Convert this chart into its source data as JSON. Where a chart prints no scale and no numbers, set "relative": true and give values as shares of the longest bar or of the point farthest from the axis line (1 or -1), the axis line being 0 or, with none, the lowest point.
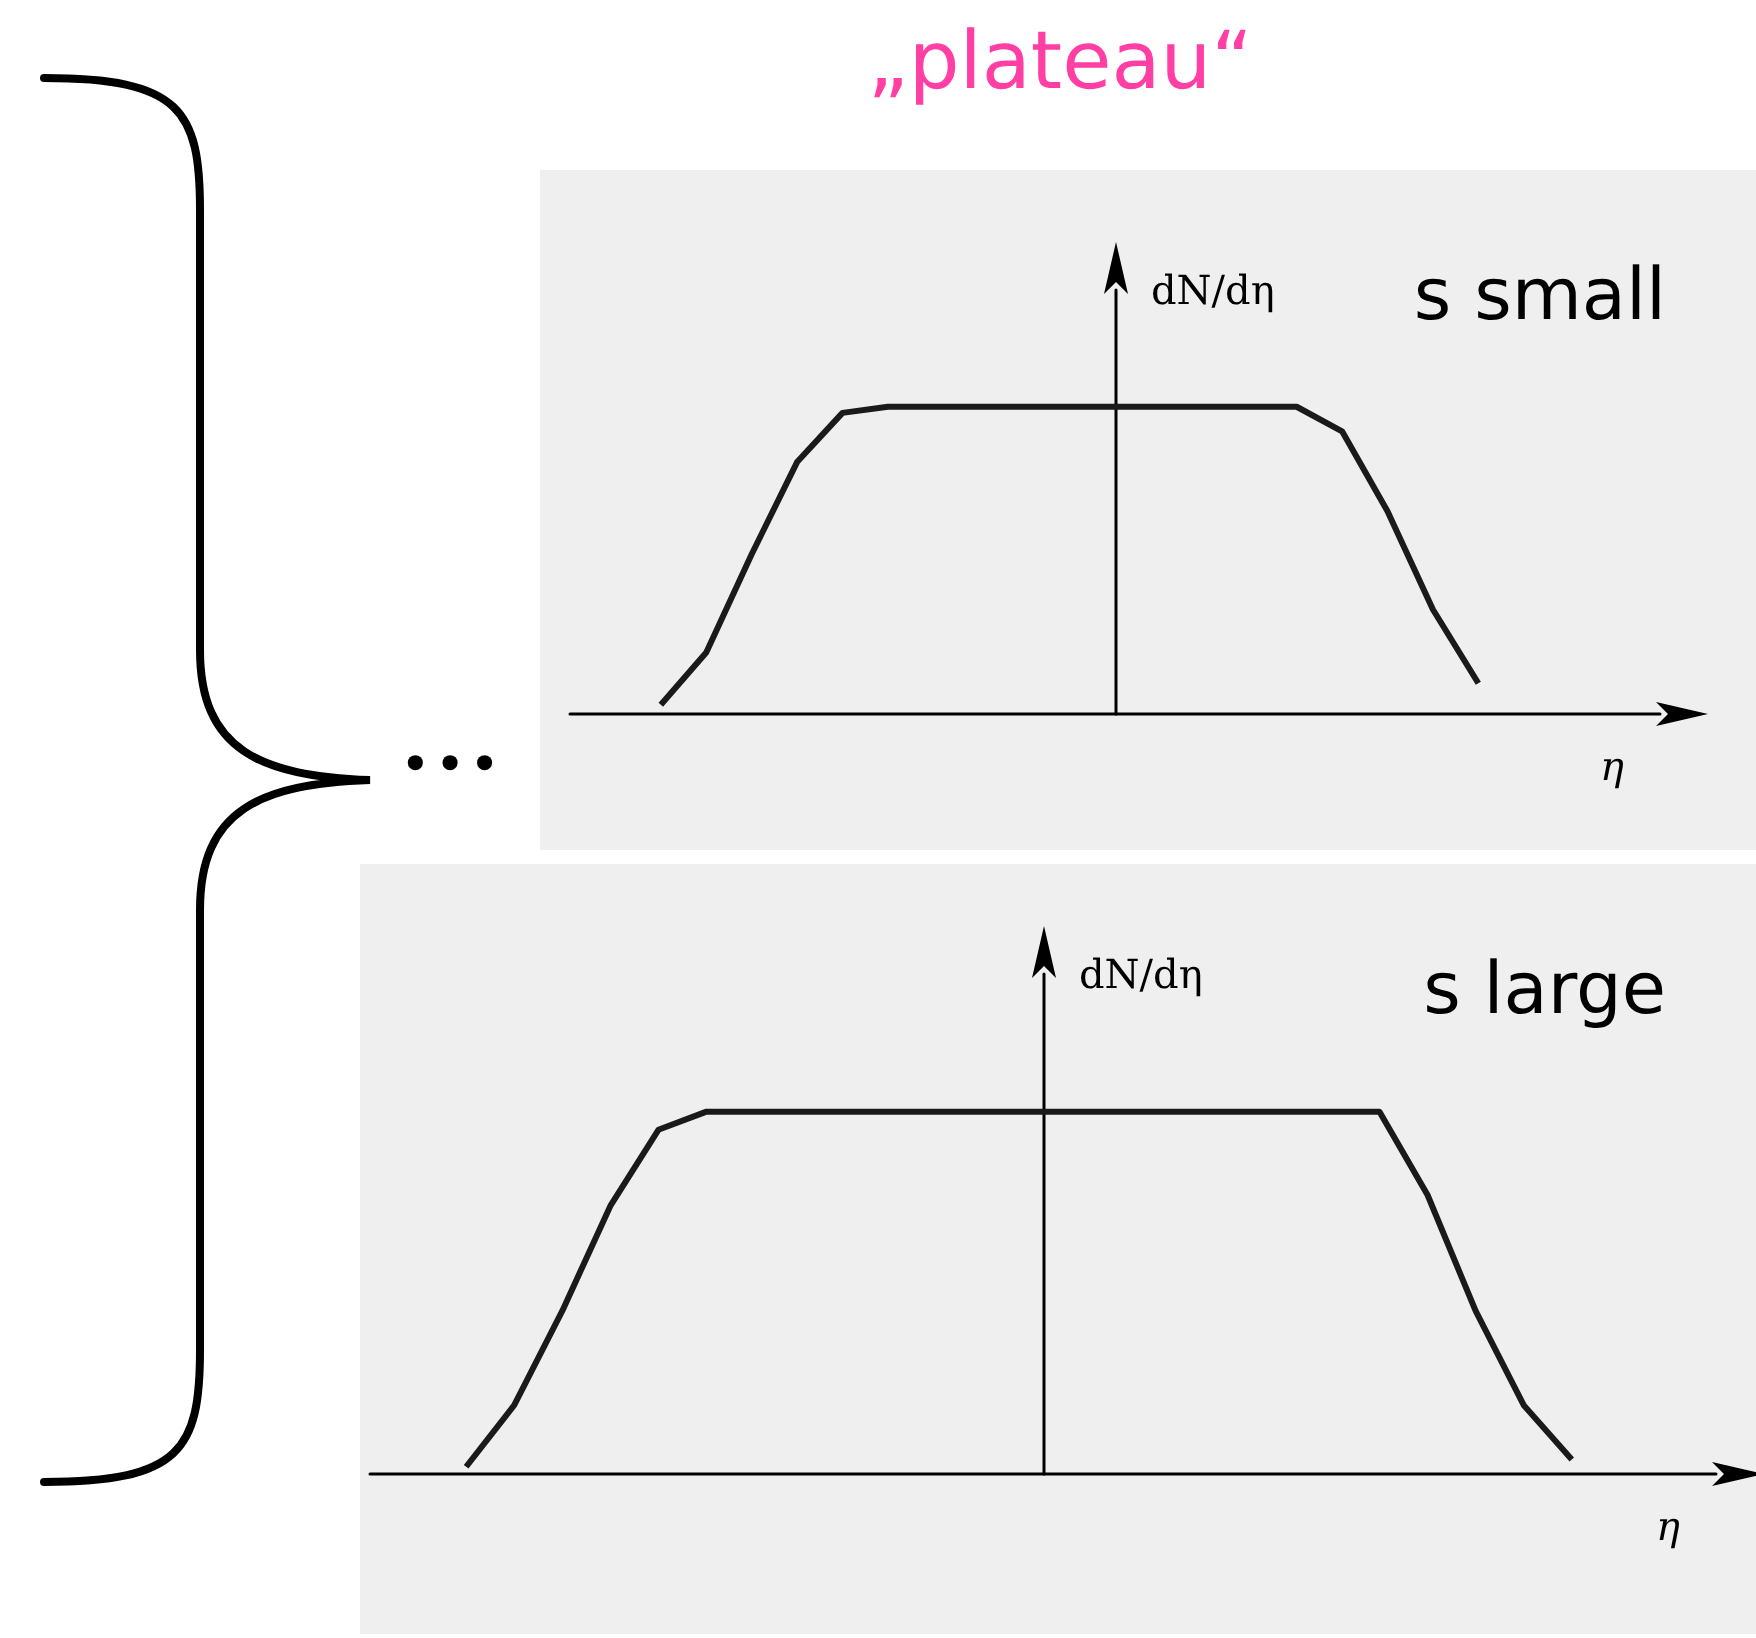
{
  "chart_data": [
    {
      "type": "line",
      "relative": true,
      "title": "„plateau“",
      "ylabel": "dN/dη",
      "xlabel": "η",
      "annotations": [
        "s small",
        "•••"
      ],
      "color": "#1a1a1a",
      "marker": "none",
      "categories": [
        null,
        null,
        null,
        null,
        null,
        null,
        null,
        null,
        null,
        null,
        null,
        null,
        null,
        null,
        null,
        null,
        null,
        null,
        null,
        null,
        null,
        null,
        null,
        null,
        null
      ],
      "values": [
        null,
        null,
        0.03,
        0.2,
        0.52,
        0.82,
        0.98,
        1,
        1,
        1,
        1,
        1,
        1,
        1,
        1,
        1,
        1,
        0.92,
        0.66,
        0.34,
        0.1,
        null,
        null,
        null,
        null
      ]
    },
    {
      "type": "line",
      "relative": true,
      "ylabel": "dN/dη",
      "xlabel": "η",
      "annotations": [
        "s large"
      ],
      "color": "#1a1a1a",
      "marker": "none",
      "categories": [
        null,
        null,
        null,
        null,
        null,
        null,
        null,
        null,
        null,
        null,
        null,
        null,
        null,
        null,
        null,
        null,
        null,
        null,
        null,
        null,
        null,
        null,
        null,
        null,
        null,
        null,
        null,
        null,
        null
      ],
      "values": [
        null,
        null,
        0.02,
        0.19,
        0.45,
        0.74,
        0.95,
        1,
        1,
        1,
        1,
        1,
        1,
        1,
        1,
        1,
        1,
        1,
        1,
        1,
        1,
        1,
        0.77,
        0.45,
        0.19,
        0.04,
        null,
        null,
        null
      ]
    }
  ]
}
